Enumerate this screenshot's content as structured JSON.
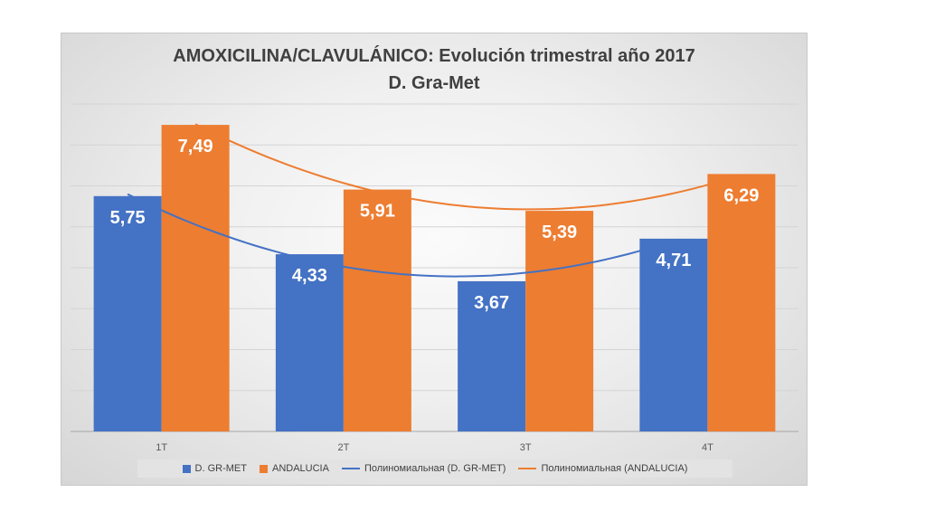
{
  "chart_data": {
    "type": "bar",
    "title_line1": "AMOXICILINA/CLAVULÁNICO: Evolución trimestral año 2017",
    "title_line2": "D. Gra-Met",
    "categories": [
      "1T",
      "2T",
      "3T",
      "4T"
    ],
    "series": [
      {
        "name": "D. GR-MET",
        "values": [
          5.75,
          4.33,
          3.67,
          4.71
        ],
        "labels": [
          "5,75",
          "4,33",
          "3,67",
          "4,71"
        ],
        "color": "#4472C4"
      },
      {
        "name": "ANDALUCIA",
        "values": [
          7.49,
          5.91,
          5.39,
          6.29
        ],
        "labels": [
          "7,49",
          "5,91",
          "5,39",
          "6,29"
        ],
        "color": "#ED7D31"
      }
    ],
    "trendlines": [
      {
        "name": "Полиномиальная (D. GR-MET)",
        "series": 0,
        "color": "#4472C4"
      },
      {
        "name": "Полиномиальная (ANDALUCIA)",
        "series": 1,
        "color": "#ED7D31"
      }
    ],
    "ylim": [
      0,
      8
    ],
    "grid": true,
    "legend_position": "bottom"
  }
}
